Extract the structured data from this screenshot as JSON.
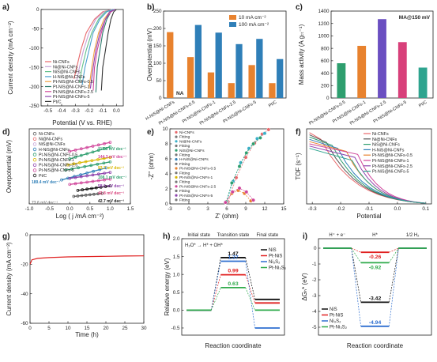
{
  "panel_labels": [
    "a)",
    "b)",
    "c)",
    "d)",
    "e)",
    "f)",
    "g)",
    "h)",
    "i)"
  ],
  "chart_data": [
    {
      "panel": "a",
      "type": "line",
      "xlabel": "Potential (V vs. RHE)",
      "ylabel": "Current density (mA cm⁻²)",
      "xlim": [
        -0.55,
        0.05
      ],
      "ylim": [
        -250,
        0
      ],
      "xticks": [
        -0.5,
        -0.4,
        -0.3,
        -0.2,
        -0.1,
        0.0
      ],
      "yticks": [
        -250,
        -200,
        -150,
        -100,
        -50,
        0
      ],
      "legend": "bottom-left",
      "series": [
        {
          "name": "Ni-CNFs",
          "color": "#e8676a",
          "x": [
            -0.03,
            -0.1,
            -0.16,
            -0.22,
            -0.26,
            -0.29,
            -0.31
          ],
          "y": [
            0,
            -6,
            -25,
            -60,
            -105,
            -150,
            -180
          ]
        },
        {
          "name": "Ni@Ni-CNFs",
          "color": "#c7a2d7",
          "x": [
            -0.03,
            -0.09,
            -0.15,
            -0.2,
            -0.24,
            -0.27,
            -0.29
          ],
          "y": [
            0,
            -6,
            -25,
            -60,
            -105,
            -150,
            -185
          ]
        },
        {
          "name": "NiS@Ni-CNFs",
          "color": "#63c08a",
          "x": [
            -0.02,
            -0.08,
            -0.13,
            -0.18,
            -0.22,
            -0.25,
            -0.27
          ],
          "y": [
            0,
            -6,
            -25,
            -60,
            -105,
            -150,
            -190
          ]
        },
        {
          "name": "H-NiS@Ni-CNFs",
          "color": "#4a9fd0",
          "x": [
            -0.02,
            -0.07,
            -0.12,
            -0.17,
            -0.2,
            -0.23,
            -0.25
          ],
          "y": [
            0,
            -6,
            -25,
            -60,
            -105,
            -150,
            -195
          ]
        },
        {
          "name": "Pt-NiS@Ni-CNFs-0.5",
          "color": "#f2a141",
          "x": [
            -0.01,
            -0.05,
            -0.09,
            -0.13,
            -0.16,
            -0.18,
            -0.2
          ],
          "y": [
            0,
            -6,
            -25,
            -60,
            -105,
            -150,
            -205
          ]
        },
        {
          "name": "Pt-NiS@Ni-CNFs-1",
          "color": "#2e7d6e",
          "x": [
            -0.01,
            -0.04,
            -0.07,
            -0.1,
            -0.12,
            -0.14,
            -0.15
          ],
          "y": [
            0,
            -6,
            -25,
            -60,
            -105,
            -150,
            -215
          ]
        },
        {
          "name": "Pt-NiS@Ni-CNFs-2.5",
          "color": "#d0459a",
          "x": [
            -0.01,
            -0.04,
            -0.08,
            -0.11,
            -0.14,
            -0.16,
            -0.17
          ],
          "y": [
            0,
            -6,
            -25,
            -60,
            -105,
            -150,
            -210
          ]
        },
        {
          "name": "Pt-NiS@Ni-CNFs-5",
          "color": "#8e44ad",
          "x": [
            -0.01,
            -0.05,
            -0.08,
            -0.12,
            -0.15,
            -0.17,
            -0.19
          ],
          "y": [
            0,
            -6,
            -25,
            -60,
            -105,
            -150,
            -205
          ]
        },
        {
          "name": "Pt/C",
          "color": "#333333",
          "x": [
            0.0,
            -0.02,
            -0.04,
            -0.06,
            -0.08,
            -0.1,
            -0.11
          ],
          "y": [
            0,
            -6,
            -25,
            -60,
            -105,
            -150,
            -210
          ]
        }
      ]
    },
    {
      "panel": "b",
      "type": "bar",
      "ylabel": "Overpotential (mV)",
      "ylim": [
        0,
        250
      ],
      "yticks": [
        0,
        50,
        100,
        150,
        200,
        250
      ],
      "legend": "top-right",
      "categories": [
        "H-NiS@Ni-CNFs",
        "Pt-NiS@Ni-CNFs-0.5",
        "Pt-NiS@Ni-CNFs-1",
        "Pt-NiS@Ni-CNFs-2.5",
        "Pt-NiS@Ni-CNFs-5",
        "Pt/C"
      ],
      "na_label": "NA",
      "series": [
        {
          "name": "10 mA cm⁻²",
          "color": "#e8822e",
          "values": [
            189.4,
            117.8,
            73.6,
            42.8,
            94.7,
            42.7
          ]
        },
        {
          "name": "100 mA cm⁻²",
          "color": "#2f7fb8",
          "values": [
            null,
            210,
            188,
            155,
            170,
            112
          ]
        }
      ]
    },
    {
      "panel": "c",
      "type": "bar",
      "annotation": "MA@150 mV",
      "ylabel": "Mass activity (A gₜₜ⁻¹)",
      "ylim": [
        0,
        1400
      ],
      "yticks": [
        0,
        200,
        400,
        600,
        800,
        1000,
        1200,
        1400
      ],
      "categories": [
        "Pt-NiS@Ni-CNFs-0.5",
        "Pt-NiS@Ni-CNFs-1",
        "Pt-NiS@Ni-CNFs-2.5",
        "Pt-NiS@Ni-CNFs-5",
        "Pt/C"
      ],
      "colors": [
        "#2e9e6e",
        "#e8822e",
        "#6a4fc1",
        "#d8407a",
        "#2ea48f"
      ],
      "values": [
        560,
        840,
        1270,
        900,
        490
      ]
    },
    {
      "panel": "d",
      "type": "scatter",
      "xlabel": "Log ( j /mA cm⁻²)",
      "ylabel": "Overpotential (mV)",
      "xlim": [
        -1.0,
        1.5
      ],
      "xticks": [
        -1.0,
        -0.5,
        0.0,
        0.5,
        1.0,
        1.5
      ],
      "legend": "top-left",
      "series": [
        {
          "name": "Ni-CNFs",
          "color": "#555555"
        },
        {
          "name": "Ni@Ni-CNFs",
          "color": "#e8676a"
        },
        {
          "name": "NiS@Ni-CNFs",
          "color": "#c7a2d7"
        },
        {
          "name": "H-NiS@Ni-CNFs",
          "color": "#2f7fb8"
        },
        {
          "name": "Pt-NiS@Ni-CNFs-0.5",
          "color": "#2e9e6e"
        },
        {
          "name": "Pt-NiS@Ni-CNFs-1",
          "color": "#d8b600"
        },
        {
          "name": "Pt-NiS@Ni-CNFs-2.5",
          "color": "#8e44ad"
        },
        {
          "name": "Pt-NiS@Ni-CNFs-5",
          "color": "#d0459a"
        },
        {
          "name": "Pt/C",
          "color": "#111111"
        }
      ],
      "annotations": [
        {
          "text": "117.8 mV dec⁻¹",
          "color": "#2e9e6e"
        },
        {
          "text": "144.3 mV dec⁻¹",
          "color": "#d0459a"
        },
        {
          "text": "93.7 mV dec⁻¹",
          "color": "#d8b600"
        },
        {
          "text": "108.1 mV dec⁻¹",
          "color": "#2e9e6e"
        },
        {
          "text": "189.4 mV dec⁻¹",
          "color": "#2f7fb8"
        },
        {
          "text": "58.6 mV dec⁻¹",
          "color": "#8e44ad"
        },
        {
          "text": "42.8 mV dec⁻¹",
          "color": "#d8407a"
        },
        {
          "text": "42.7 mV dec⁻¹",
          "color": "#111111"
        },
        {
          "text": "73.6 mV dec⁻¹",
          "color": "#888888"
        }
      ]
    },
    {
      "panel": "e",
      "type": "scatter",
      "xlabel": "Z' (ohm)",
      "ylabel": "-Z'' (ohm)",
      "xlim": [
        -3,
        15
      ],
      "ylim": [
        0,
        10
      ],
      "xticks": [
        -3,
        0,
        3,
        6,
        9,
        12,
        15
      ],
      "yticks": [
        0,
        2,
        4,
        6,
        8,
        10
      ],
      "legend": "top-left",
      "legend_entries": [
        "Ni-CNFs",
        "Fitting",
        "Ni@Ni-CNFs",
        "Fitting",
        "NiS@Ni-CNFs",
        "Fitting",
        "H-NiS@Ni-CNFs",
        "Fitting",
        "Pt-NiS@Ni-CNFs-0.5",
        "Fitting",
        "Pt-NiS@Ni-CNFs-1",
        "Fitting",
        "Pt-NiS@Ni-CNFs-2.5",
        "Fitting",
        "Pt-NiS@Ni-CNFs-5",
        "Fitting"
      ],
      "series": [
        {
          "name": "Ni-CNFs",
          "color": "#e8676a",
          "x": [
            6.2,
            7.5,
            9.0,
            10.4,
            11.6,
            12.6
          ],
          "y": [
            0.3,
            3.5,
            6.2,
            8.1,
            9.3,
            9.9
          ]
        },
        {
          "name": "Ni@Ni-CNFs",
          "color": "#3bb0c9",
          "x": [
            6.0,
            7.0,
            8.2,
            9.5,
            10.8,
            12.0
          ],
          "y": [
            0.3,
            3.0,
            5.5,
            7.4,
            8.7,
            9.4
          ]
        },
        {
          "name": "NiS@Ni-CNFs",
          "color": "#2e9e6e",
          "x": [
            5.9,
            6.8,
            8.0,
            9.1,
            10.2,
            11.3
          ],
          "y": [
            0.3,
            2.8,
            5.0,
            6.8,
            8.0,
            8.8
          ]
        },
        {
          "name": "Pt-NiS@Ni-CNFs-1",
          "color": "#e8822e",
          "x": [
            5.8,
            6.8,
            7.8,
            8.8,
            9.8
          ],
          "y": [
            0.2,
            1.4,
            1.8,
            1.4,
            0.4
          ]
        },
        {
          "name": "Pt-NiS@Ni-CNFs-2.5",
          "color": "#d0459a",
          "x": [
            5.8,
            6.9,
            8.0,
            9.1,
            10.2
          ],
          "y": [
            0.2,
            1.6,
            2.1,
            1.6,
            0.5
          ]
        }
      ]
    },
    {
      "panel": "f",
      "type": "line",
      "xlabel": "Potential",
      "ylabel": "TOF (s⁻¹)",
      "xlim": [
        -0.32,
        0.12
      ],
      "xticks": [
        -0.3,
        -0.2,
        -0.1,
        0.0,
        0.1
      ],
      "legend": "top-right",
      "series": [
        {
          "name": "Ni-CNFs",
          "color": "#e8676a"
        },
        {
          "name": "Ni@Ni-CNFs",
          "color": "#555555"
        },
        {
          "name": "NiS@Ni-CNFs",
          "color": "#2e9e6e"
        },
        {
          "name": "H-NiS@Ni-CNFs",
          "color": "#2f7fb8"
        },
        {
          "name": "Pt-NiS@Ni-CNFs-0.5",
          "color": "#e8822e"
        },
        {
          "name": "Pt-NiS@Ni-CNFs-1",
          "color": "#d0459a"
        },
        {
          "name": "Pt-NiS@Ni-CNFs-2.5",
          "color": "#8e44ad"
        },
        {
          "name": "Pt-NiS@Ni-CNFs-5",
          "color": "#2ea48f"
        }
      ]
    },
    {
      "panel": "g",
      "type": "line",
      "xlabel": "Time (h)",
      "ylabel": "Current density (mA cm⁻²)",
      "xlim": [
        0,
        30
      ],
      "ylim": [
        -60,
        0
      ],
      "xticks": [
        0,
        5,
        10,
        15,
        20,
        25,
        30
      ],
      "yticks": [
        -60,
        -40,
        -20,
        0
      ],
      "series": [
        {
          "name": "stability",
          "color": "#e02020",
          "x": [
            0,
            0.5,
            2,
            5,
            10,
            15,
            20,
            25,
            30
          ],
          "y": [
            -20,
            -17,
            -16,
            -15.5,
            -15,
            -14.8,
            -14.6,
            -14.4,
            -14.3
          ]
        }
      ]
    },
    {
      "panel": "h",
      "type": "line",
      "xlabel": "Reaction coordinate",
      "ylabel": "Relative energy (eV)",
      "ylim": [
        -0.7,
        2.0
      ],
      "yticks": [
        -0.5,
        0.0,
        0.5,
        1.0,
        1.5,
        2.0
      ],
      "stages": [
        "Initial state",
        "Transition state",
        "Final state"
      ],
      "reaction": "H₂O* → H* + OH*",
      "legend": "right",
      "series": [
        {
          "name": "NiS",
          "color": "#111111",
          "values": [
            0,
            1.47,
            0.3
          ],
          "label": "1.47"
        },
        {
          "name": "Pt-NiS",
          "color": "#e02020",
          "values": [
            0,
            0.99,
            0.2
          ],
          "label": "0.99"
        },
        {
          "name": "Ni₃S₂",
          "color": "#2f6fd0",
          "values": [
            0,
            1.37,
            -0.5
          ],
          "label": "1.37"
        },
        {
          "name": "Pt-Ni₃S₂",
          "color": "#2eaa4a",
          "values": [
            0,
            0.63,
            0.0
          ],
          "label": "0.63"
        }
      ]
    },
    {
      "panel": "i",
      "type": "line",
      "xlabel": "Reaction coordinate",
      "ylabel": "ΔGₕ* (eV)",
      "ylim": [
        -5.5,
        0.6
      ],
      "yticks": [
        -5,
        -4,
        -3,
        -2,
        -1,
        0
      ],
      "stages": [
        "H⁺ + e⁻",
        "H*",
        "1/2 H₂"
      ],
      "legend": "bottom-left",
      "series": [
        {
          "name": "NiS",
          "color": "#111111",
          "values": [
            0,
            -3.42,
            0
          ],
          "label": "-3.42"
        },
        {
          "name": "Pt-NiS",
          "color": "#e02020",
          "values": [
            0,
            -0.26,
            0
          ],
          "label": "-0.26"
        },
        {
          "name": "Ni₃S₂",
          "color": "#2f6fd0",
          "values": [
            0,
            -4.94,
            0
          ],
          "label": "-4.94"
        },
        {
          "name": "Pt-Ni₃S₂",
          "color": "#2eaa4a",
          "values": [
            0,
            -0.92,
            0
          ],
          "label": "-0.92"
        }
      ]
    }
  ]
}
